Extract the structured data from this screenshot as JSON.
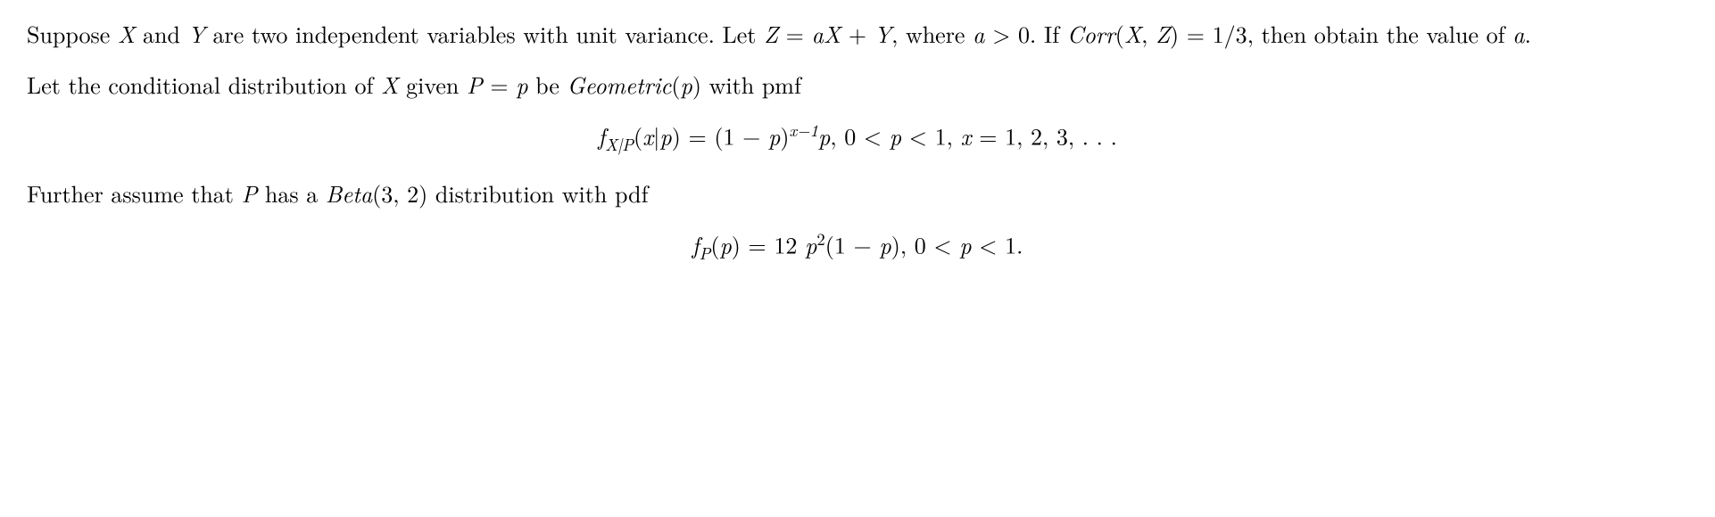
{
  "colors": {
    "text": "#000000",
    "background": "#ffffff"
  },
  "typography": {
    "font_family": "Latin Modern Roman / Computer Modern serif",
    "body_fontsize_pt": 20
  },
  "para1": {
    "t1": "Suppose ",
    "X": "X",
    "t2": " and ",
    "Y": "Y",
    "t3": " are two independent variables with unit variance. Let ",
    "Z": "Z",
    "eq": " = ",
    "a": "a",
    "plus": " + ",
    "t4": ", where ",
    "agt": "a",
    "gt0": " > 0",
    "t5": ". If ",
    "corr": "Corr",
    "lp": "(",
    "comma": ", ",
    "rp": ")",
    "eq2": " = 1/3",
    "t6": ", then obtain the value of ",
    "period": "."
  },
  "para2": {
    "t1": "Let the conditional distribution of ",
    "X": "X",
    "t2": " given ",
    "P": "P",
    "eqp": " = ",
    "p": "p",
    "t3": " be ",
    "geo": "Geometric",
    "lp": "(",
    "rp": ")",
    "t4": " with pmf"
  },
  "eq1": {
    "f": "f",
    "sub1": "X|P",
    "lp": "(",
    "x": "x",
    "bar": "|",
    "p": "p",
    "rp": ")",
    "eq": " = (1 − ",
    "rpa": ")",
    "exp": "x−1",
    "comma": ",   0 < ",
    "lt1": " < 1,  ",
    "xeq": " = 1, 2, 3, . . ."
  },
  "para3": {
    "t1": "Further assume that ",
    "P": "P",
    "t2": " has a ",
    "beta": "Beta",
    "args": "(3, 2)",
    "t3": " distribution with pdf"
  },
  "eq2d": {
    "f": "f",
    "subP": "P",
    "lp": "(",
    "p": "p",
    "rp": ")",
    "eq": " = 12 ",
    "sq": "2",
    "one_minus": "(1 − ",
    "rpa": "),   0 < ",
    "lt1": " < 1."
  }
}
